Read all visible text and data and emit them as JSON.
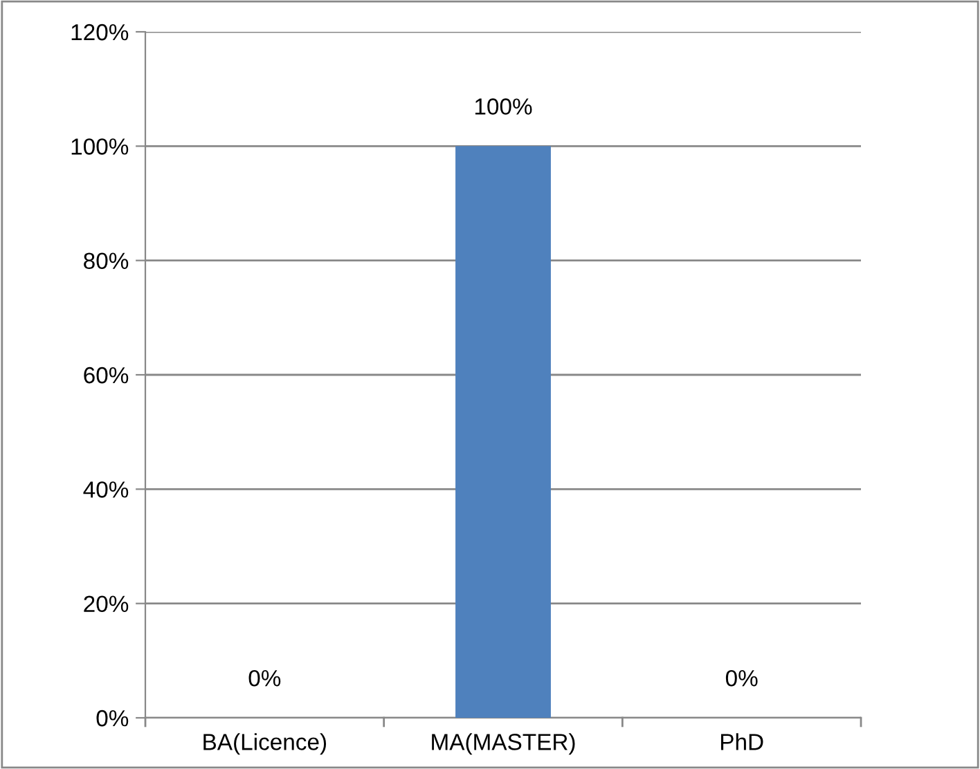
{
  "chart_data": {
    "type": "bar",
    "categories": [
      "BA(Licence)",
      "MA(MASTER)",
      "PhD"
    ],
    "values": [
      0,
      100,
      0
    ],
    "color": "#4f81bd",
    "value_labels": [
      "0%",
      "100%",
      "0%"
    ],
    "ylim": [
      0,
      120
    ],
    "yticks": [
      {
        "value": 0,
        "label": "0%"
      },
      {
        "value": 20,
        "label": "20%"
      },
      {
        "value": 40,
        "label": "40%"
      },
      {
        "value": 60,
        "label": "60%"
      },
      {
        "value": 80,
        "label": "80%"
      },
      {
        "value": 100,
        "label": "100%"
      },
      {
        "value": 120,
        "label": "120%"
      }
    ],
    "grid": "y"
  }
}
